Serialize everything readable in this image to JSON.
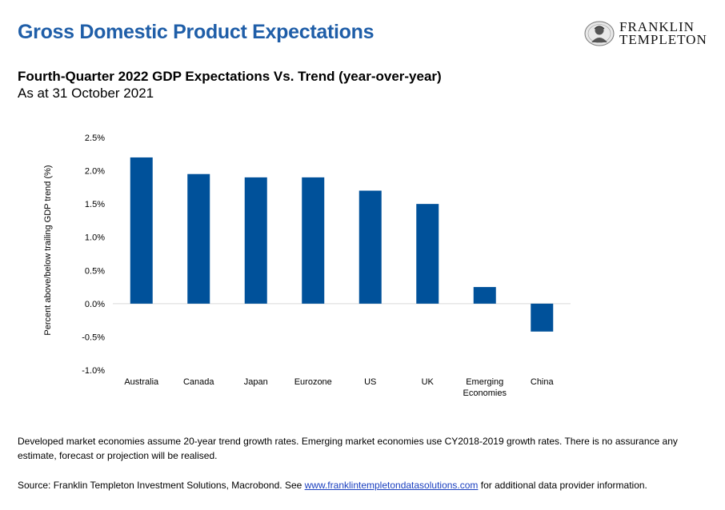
{
  "header": {
    "page_title": "Gross Domestic Product Expectations",
    "logo": {
      "line1": "FRANKLIN",
      "line2": "TEMPLETON",
      "icon": "franklin-portrait-icon"
    }
  },
  "chart_data": {
    "type": "bar",
    "title": "Fourth-Quarter 2022 GDP Expectations Vs. Trend (year-over-year)",
    "subtitle": "As at 31 October 2021",
    "ylabel": "Percent above/below trailing GDP trend (%)",
    "xlabel": "",
    "ylim": [
      -1.0,
      2.5
    ],
    "yticks": [
      "2.5%",
      "2.0%",
      "1.5%",
      "1.0%",
      "0.5%",
      "0.0%",
      "-0.5%",
      "-1.0%"
    ],
    "ytick_values": [
      2.5,
      2.0,
      1.5,
      1.0,
      0.5,
      0.0,
      -0.5,
      -1.0
    ],
    "categories": [
      [
        "Australia"
      ],
      [
        "Canada"
      ],
      [
        "Japan"
      ],
      [
        "Eurozone"
      ],
      [
        "US"
      ],
      [
        "UK"
      ],
      [
        "Emerging",
        "Economies"
      ],
      [
        "China"
      ]
    ],
    "values": [
      2.2,
      1.95,
      1.9,
      1.9,
      1.7,
      1.5,
      0.25,
      -0.42
    ],
    "bar_color": "#00519a",
    "grid": false,
    "legend": "none"
  },
  "footer": {
    "note": "Developed market economies assume 20-year trend growth rates. Emerging market economies use CY2018-2019 growth rates. There is no assurance any estimate, forecast or projection will be realised.",
    "source_prefix": "Source: Franklin Templeton Investment Solutions, Macrobond. See ",
    "source_link": "www.franklintempletondatasolutions.com",
    "source_suffix": " for additional data provider information."
  },
  "colors": {
    "title": "#1f5ea8",
    "bar": "#00519a",
    "link": "#1a3fbf",
    "axis": "#d9d9d9"
  }
}
